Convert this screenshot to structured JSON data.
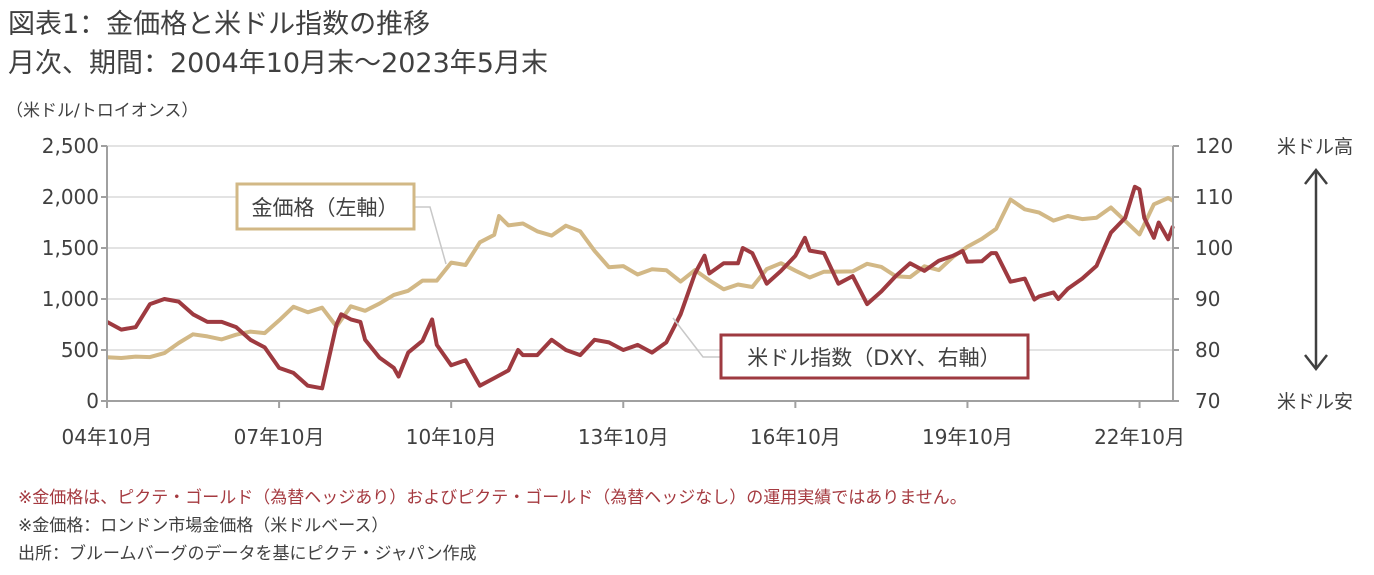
{
  "title": "図表1：金価格と米ドル指数の推移",
  "subtitle": "月次、期間：2004年10月末～2023年5月末",
  "notes": [
    "※金価格は、ピクテ・ゴールド（為替ヘッジあり）およびピクテ・ゴールド（為替ヘッジなし）の運用実績ではありません。",
    "※金価格：ロンドン市場金価格（米ドルベース）",
    "出所：ブルームバーグのデータを基にピクテ・ジャパン作成"
  ],
  "colors": {
    "gold": "#d2b886",
    "dxy": "#9e3a40",
    "grid": "#e3e3e3",
    "axis": "#a0a0a0",
    "text": "#404040"
  },
  "chart_data": {
    "type": "line",
    "title": "金価格と米ドル指数の推移",
    "ylabel_left": "（米ドル/トロイオンス）",
    "left_axis": {
      "range": [
        0,
        2500
      ],
      "ticks": [
        "0",
        "500",
        "1,000",
        "1,500",
        "2,000",
        "2,500"
      ],
      "tick_values": [
        0,
        500,
        1000,
        1500,
        2000,
        2500
      ]
    },
    "right_axis": {
      "range": [
        70,
        120
      ],
      "ticks": [
        "70",
        "80",
        "90",
        "100",
        "110",
        "120"
      ],
      "tick_values": [
        70,
        80,
        90,
        100,
        110,
        120
      ]
    },
    "x_range": [
      "2004-10",
      "2023-05"
    ],
    "x_ticks": [
      {
        "date": "2004-10",
        "label": "04年10月"
      },
      {
        "date": "2007-10",
        "label": "07年10月"
      },
      {
        "date": "2010-10",
        "label": "10年10月"
      },
      {
        "date": "2013-10",
        "label": "13年10月"
      },
      {
        "date": "2016-10",
        "label": "16年10月"
      },
      {
        "date": "2019-10",
        "label": "19年10月"
      },
      {
        "date": "2022-10",
        "label": "22年10月"
      }
    ],
    "grid": "horizontal",
    "right_annotations": {
      "top": "米ドル高",
      "bottom": "米ドル安"
    },
    "series": [
      {
        "name": "金価格（左軸）",
        "axis": "left",
        "color": "#d2b886",
        "points": [
          [
            "2004-10",
            428
          ],
          [
            "2005-01",
            422
          ],
          [
            "2005-04",
            435
          ],
          [
            "2005-07",
            430
          ],
          [
            "2005-10",
            470
          ],
          [
            "2006-01",
            569
          ],
          [
            "2006-04",
            654
          ],
          [
            "2006-07",
            633
          ],
          [
            "2006-10",
            604
          ],
          [
            "2007-01",
            650
          ],
          [
            "2007-04",
            680
          ],
          [
            "2007-07",
            666
          ],
          [
            "2007-10",
            790
          ],
          [
            "2008-01",
            924
          ],
          [
            "2008-04",
            870
          ],
          [
            "2008-07",
            915
          ],
          [
            "2008-10",
            730
          ],
          [
            "2009-01",
            928
          ],
          [
            "2009-04",
            884
          ],
          [
            "2009-07",
            955
          ],
          [
            "2009-10",
            1040
          ],
          [
            "2010-01",
            1080
          ],
          [
            "2010-04",
            1180
          ],
          [
            "2010-07",
            1180
          ],
          [
            "2010-10",
            1357
          ],
          [
            "2011-01",
            1333
          ],
          [
            "2011-04",
            1556
          ],
          [
            "2011-07",
            1628
          ],
          [
            "2011-08",
            1813
          ],
          [
            "2011-10",
            1722
          ],
          [
            "2012-01",
            1740
          ],
          [
            "2012-04",
            1664
          ],
          [
            "2012-07",
            1622
          ],
          [
            "2012-10",
            1719
          ],
          [
            "2013-01",
            1664
          ],
          [
            "2013-04",
            1472
          ],
          [
            "2013-07",
            1312
          ],
          [
            "2013-10",
            1323
          ],
          [
            "2014-01",
            1240
          ],
          [
            "2014-04",
            1291
          ],
          [
            "2014-07",
            1282
          ],
          [
            "2014-10",
            1171
          ],
          [
            "2015-01",
            1283
          ],
          [
            "2015-04",
            1183
          ],
          [
            "2015-07",
            1095
          ],
          [
            "2015-10",
            1142
          ],
          [
            "2016-01",
            1118
          ],
          [
            "2016-04",
            1293
          ],
          [
            "2016-07",
            1351
          ],
          [
            "2016-10",
            1277
          ],
          [
            "2017-01",
            1211
          ],
          [
            "2017-04",
            1268
          ],
          [
            "2017-07",
            1269
          ],
          [
            "2017-10",
            1271
          ],
          [
            "2018-01",
            1345
          ],
          [
            "2018-04",
            1315
          ],
          [
            "2018-07",
            1224
          ],
          [
            "2018-10",
            1215
          ],
          [
            "2019-01",
            1321
          ],
          [
            "2019-04",
            1283
          ],
          [
            "2019-07",
            1413
          ],
          [
            "2019-10",
            1513
          ],
          [
            "2020-01",
            1589
          ],
          [
            "2020-04",
            1687
          ],
          [
            "2020-07",
            1975
          ],
          [
            "2020-10",
            1879
          ],
          [
            "2021-01",
            1847
          ],
          [
            "2021-04",
            1769
          ],
          [
            "2021-07",
            1814
          ],
          [
            "2021-10",
            1783
          ],
          [
            "2022-01",
            1797
          ],
          [
            "2022-04",
            1897
          ],
          [
            "2022-07",
            1766
          ],
          [
            "2022-10",
            1633
          ],
          [
            "2023-01",
            1928
          ],
          [
            "2023-04",
            1990
          ],
          [
            "2023-05",
            1963
          ]
        ]
      },
      {
        "name": "米ドル指数（DXY、右軸）",
        "axis": "right",
        "color": "#9e3a40",
        "points": [
          [
            "2004-10",
            85.5
          ],
          [
            "2005-01",
            84
          ],
          [
            "2005-04",
            84.5
          ],
          [
            "2005-07",
            89
          ],
          [
            "2005-10",
            90
          ],
          [
            "2006-01",
            89.5
          ],
          [
            "2006-04",
            87
          ],
          [
            "2006-07",
            85.5
          ],
          [
            "2006-10",
            85.5
          ],
          [
            "2007-01",
            84.5
          ],
          [
            "2007-04",
            82
          ],
          [
            "2007-07",
            80.5
          ],
          [
            "2007-10",
            76.5
          ],
          [
            "2008-01",
            75.5
          ],
          [
            "2008-04",
            73
          ],
          [
            "2008-07",
            72.5
          ],
          [
            "2008-10",
            85
          ],
          [
            "2008-11",
            87
          ],
          [
            "2009-01",
            86
          ],
          [
            "2009-03",
            85.5
          ],
          [
            "2009-04",
            82
          ],
          [
            "2009-07",
            78.5
          ],
          [
            "2009-10",
            76.5
          ],
          [
            "2009-11",
            74.8
          ],
          [
            "2010-01",
            79.5
          ],
          [
            "2010-04",
            81.8
          ],
          [
            "2010-06",
            86
          ],
          [
            "2010-07",
            81
          ],
          [
            "2010-10",
            77
          ],
          [
            "2011-01",
            78
          ],
          [
            "2011-04",
            73
          ],
          [
            "2011-07",
            74.5
          ],
          [
            "2011-10",
            76
          ],
          [
            "2011-12",
            80
          ],
          [
            "2012-01",
            79
          ],
          [
            "2012-04",
            79
          ],
          [
            "2012-07",
            82
          ],
          [
            "2012-10",
            80
          ],
          [
            "2013-01",
            79
          ],
          [
            "2013-04",
            82
          ],
          [
            "2013-07",
            81.5
          ],
          [
            "2013-10",
            80
          ],
          [
            "2014-01",
            81
          ],
          [
            "2014-04",
            79.5
          ],
          [
            "2014-07",
            81.5
          ],
          [
            "2014-10",
            87
          ],
          [
            "2015-01",
            95
          ],
          [
            "2015-03",
            98.5
          ],
          [
            "2015-04",
            95
          ],
          [
            "2015-07",
            97
          ],
          [
            "2015-10",
            97
          ],
          [
            "2015-11",
            100
          ],
          [
            "2016-01",
            99
          ],
          [
            "2016-04",
            93
          ],
          [
            "2016-07",
            95.5
          ],
          [
            "2016-10",
            98.5
          ],
          [
            "2016-12",
            102
          ],
          [
            "2017-01",
            99.5
          ],
          [
            "2017-04",
            99
          ],
          [
            "2017-07",
            93
          ],
          [
            "2017-10",
            94.5
          ],
          [
            "2018-01",
            89
          ],
          [
            "2018-04",
            91.5
          ],
          [
            "2018-07",
            94.5
          ],
          [
            "2018-10",
            97
          ],
          [
            "2019-01",
            95.5
          ],
          [
            "2019-04",
            97.5
          ],
          [
            "2019-07",
            98.5
          ],
          [
            "2019-09",
            99.4
          ],
          [
            "2019-10",
            97.3
          ],
          [
            "2020-01",
            97.4
          ],
          [
            "2020-03",
            99
          ],
          [
            "2020-04",
            99
          ],
          [
            "2020-07",
            93.4
          ],
          [
            "2020-10",
            94
          ],
          [
            "2020-12",
            89.9
          ],
          [
            "2021-01",
            90.5
          ],
          [
            "2021-04",
            91.3
          ],
          [
            "2021-05",
            90
          ],
          [
            "2021-07",
            92
          ],
          [
            "2021-10",
            94
          ],
          [
            "2022-01",
            96.5
          ],
          [
            "2022-04",
            103
          ],
          [
            "2022-07",
            105.9
          ],
          [
            "2022-09",
            112
          ],
          [
            "2022-10",
            111.5
          ],
          [
            "2022-11",
            105.9
          ],
          [
            "2023-01",
            102
          ],
          [
            "2023-02",
            105
          ],
          [
            "2023-04",
            101.7
          ],
          [
            "2023-05",
            104.3
          ]
        ]
      }
    ]
  }
}
